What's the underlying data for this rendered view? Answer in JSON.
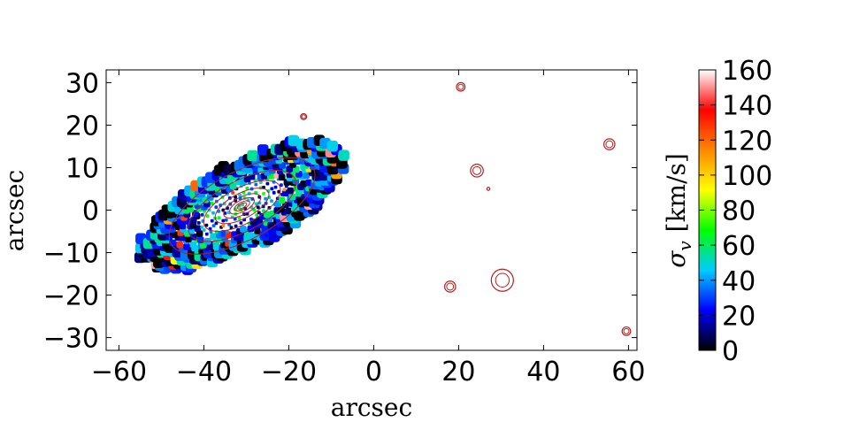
{
  "chart_data": {
    "type": "heatmap",
    "title": "",
    "xlabel": "arcsec",
    "ylabel": "arcsec",
    "xlim": [
      -63,
      62
    ],
    "ylim": [
      -33,
      33
    ],
    "x_ticks": [
      -60,
      -40,
      -20,
      0,
      20,
      40,
      60
    ],
    "x_tick_labels": [
      "−60",
      "−40",
      "−20",
      "0",
      "20",
      "40",
      "60"
    ],
    "y_ticks": [
      -30,
      -20,
      -10,
      0,
      10,
      20,
      30
    ],
    "y_tick_labels": [
      "−30",
      "−20",
      "−10",
      "0",
      "10",
      "20",
      "30"
    ],
    "grid": false,
    "colorbar": {
      "label": "σ_v [km/s]",
      "label_symbol": "σ",
      "label_subscript": "v",
      "label_units": "[km/s]",
      "min": 0,
      "max": 160,
      "ticks": [
        0,
        20,
        40,
        60,
        80,
        100,
        120,
        140,
        160
      ],
      "tick_labels": [
        "0",
        "20",
        "40",
        "60",
        "80",
        "100",
        "120",
        "140",
        "160"
      ],
      "colormap": [
        "#000000",
        "#0000ff",
        "#00ccff",
        "#00ff00",
        "#ffff00",
        "#ff8800",
        "#ff0000",
        "#ffffff"
      ]
    },
    "galaxy": {
      "center": [
        -31,
        1
      ],
      "outer_semi_major": 26,
      "outer_semi_minor": 10,
      "position_angle_deg": 28,
      "dispersion_inner": 45,
      "dispersion_outer": 20
    },
    "isophotes_color": "#b22222",
    "point_sources": [
      {
        "x": -16.5,
        "y": 22,
        "r": 0.7
      },
      {
        "x": 20.5,
        "y": 29,
        "r": 1.0
      },
      {
        "x": 24.3,
        "y": 9.3,
        "r": 1.5
      },
      {
        "x": 27,
        "y": 5,
        "r": 0.35
      },
      {
        "x": 55.5,
        "y": 15.5,
        "r": 1.3
      },
      {
        "x": 18,
        "y": -18,
        "r": 1.3
      },
      {
        "x": 30.3,
        "y": -16.5,
        "r": 2.6
      },
      {
        "x": 59.5,
        "y": -28.5,
        "r": 1.0
      }
    ]
  }
}
